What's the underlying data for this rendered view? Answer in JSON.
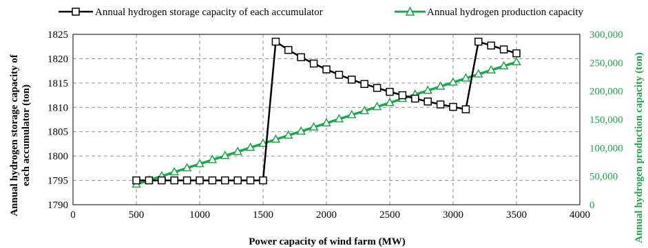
{
  "chart_data": {
    "type": "line",
    "xlabel": "Power capacity of wind farm (MW)",
    "ylabel_left": "Annual hydrogen storage capacity of each accumulator (ton)",
    "ylabel_right": "Annual hydrogen production capacity (ton)",
    "xlim": [
      0,
      4000
    ],
    "ylim_left": [
      1790,
      1825
    ],
    "ylim_right": [
      0,
      300000
    ],
    "x_ticks": [
      "0",
      "500",
      "1000",
      "1500",
      "2000",
      "2500",
      "3000",
      "3500",
      "4000"
    ],
    "y_left_ticks": [
      "1790",
      "1795",
      "1800",
      "1805",
      "1810",
      "1815",
      "1820",
      "1825"
    ],
    "y_right_ticks": [
      "0",
      "50,000",
      "100,000",
      "150,000",
      "200,000",
      "250,000",
      "300,000"
    ],
    "grid": true,
    "legend_position": "top",
    "series": [
      {
        "name": "Annual hydrogen storage capacity of each accumulator",
        "axis": "left",
        "color": "#000000",
        "marker": "square",
        "x": [
          500,
          600,
          700,
          800,
          900,
          1000,
          1100,
          1200,
          1300,
          1400,
          1500,
          1600,
          1700,
          1800,
          1900,
          2000,
          2100,
          2200,
          2300,
          2400,
          2500,
          2600,
          2700,
          2800,
          2900,
          3000,
          3100,
          3200,
          3300,
          3400,
          3500
        ],
        "values": [
          1795,
          1795,
          1795,
          1795,
          1795,
          1795,
          1795,
          1795,
          1795,
          1795,
          1795,
          1823.5,
          1821.8,
          1820.3,
          1819,
          1817.8,
          1816.7,
          1815.7,
          1814.8,
          1814,
          1813.2,
          1812.5,
          1811.8,
          1811.2,
          1810.6,
          1810.1,
          1809.6,
          1823.5,
          1822.7,
          1821.9,
          1821.1
        ]
      },
      {
        "name": "Annual hydrogen production capacity",
        "axis": "right",
        "color": "#1aa64a",
        "marker": "triangle",
        "x": [
          500,
          600,
          700,
          800,
          900,
          1000,
          1100,
          1200,
          1300,
          1400,
          1500,
          1600,
          1700,
          1800,
          1900,
          2000,
          2100,
          2200,
          2300,
          2400,
          2500,
          2600,
          2700,
          2800,
          2900,
          3000,
          3100,
          3200,
          3300,
          3400,
          3500
        ],
        "values": [
          35900,
          43100,
          50300,
          57400,
          64600,
          71800,
          79000,
          86200,
          93300,
          100500,
          107700,
          114900,
          122100,
          129200,
          136400,
          143600,
          150800,
          158000,
          165100,
          172300,
          179500,
          186700,
          193900,
          201000,
          208200,
          215400,
          222600,
          229800,
          236900,
          244100,
          251300
        ]
      }
    ]
  }
}
